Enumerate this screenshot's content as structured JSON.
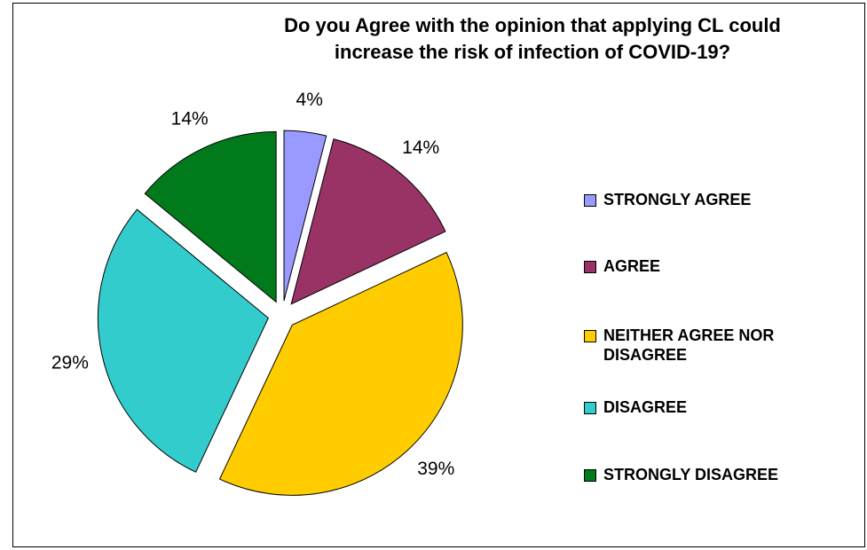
{
  "chart_data": {
    "type": "pie",
    "title_line1": "Do you Agree with the opinion that applying CL could",
    "title_line2": "increase the risk of infection of COVID-19?",
    "slices": [
      {
        "label": "STRONGLY AGREE",
        "value": 4,
        "display": "4%",
        "color": "#9999ff"
      },
      {
        "label": "AGREE",
        "value": 14,
        "display": "14%",
        "color": "#993366"
      },
      {
        "label": "NEITHER AGREE NOR DISAGREE",
        "value": 39,
        "display": "39%",
        "color": "#ffcc00"
      },
      {
        "label": "DISAGREE",
        "value": 29,
        "display": "29%",
        "color": "#33cccc"
      },
      {
        "label": "STRONGLY DISAGREE",
        "value": 14,
        "display": "14%",
        "color": "#007a1a"
      }
    ],
    "legend_position": "right",
    "exploded": true
  }
}
